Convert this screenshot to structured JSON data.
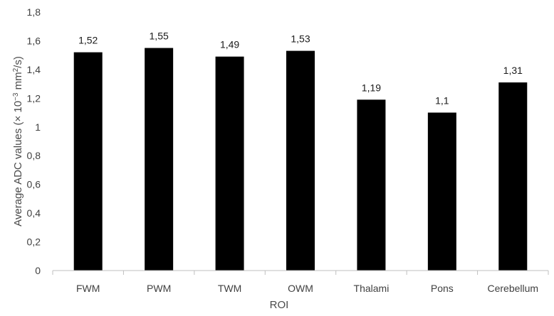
{
  "chart_data": {
    "type": "bar",
    "categories": [
      "FWM",
      "PWM",
      "TWM",
      "OWM",
      "Thalami",
      "Pons",
      "Cerebellum"
    ],
    "values": [
      1.52,
      1.55,
      1.49,
      1.53,
      1.19,
      1.1,
      1.31
    ],
    "value_labels": [
      "1,52",
      "1,55",
      "1,49",
      "1,53",
      "1,19",
      "1,1",
      "1,31"
    ],
    "xlabel": "ROI",
    "ylabel": {
      "prefix": "Average  ADC values (× 10",
      "exp1": "−3",
      "middle": " mm",
      "exp2": "2",
      "suffix": "/s)"
    },
    "ylim": [
      0,
      1.8
    ],
    "yticks": [
      0,
      0.2,
      0.4,
      0.6,
      0.8,
      1,
      1.2,
      1.4,
      1.6,
      1.8
    ],
    "ytick_labels": [
      "0",
      "0,2",
      "0,4",
      "0,6",
      "0,8",
      "1",
      "1,2",
      "1,4",
      "1,6",
      "1,8"
    ],
    "grid": false,
    "bar_color": "#000000",
    "axis_color": "#bfbfbf"
  }
}
